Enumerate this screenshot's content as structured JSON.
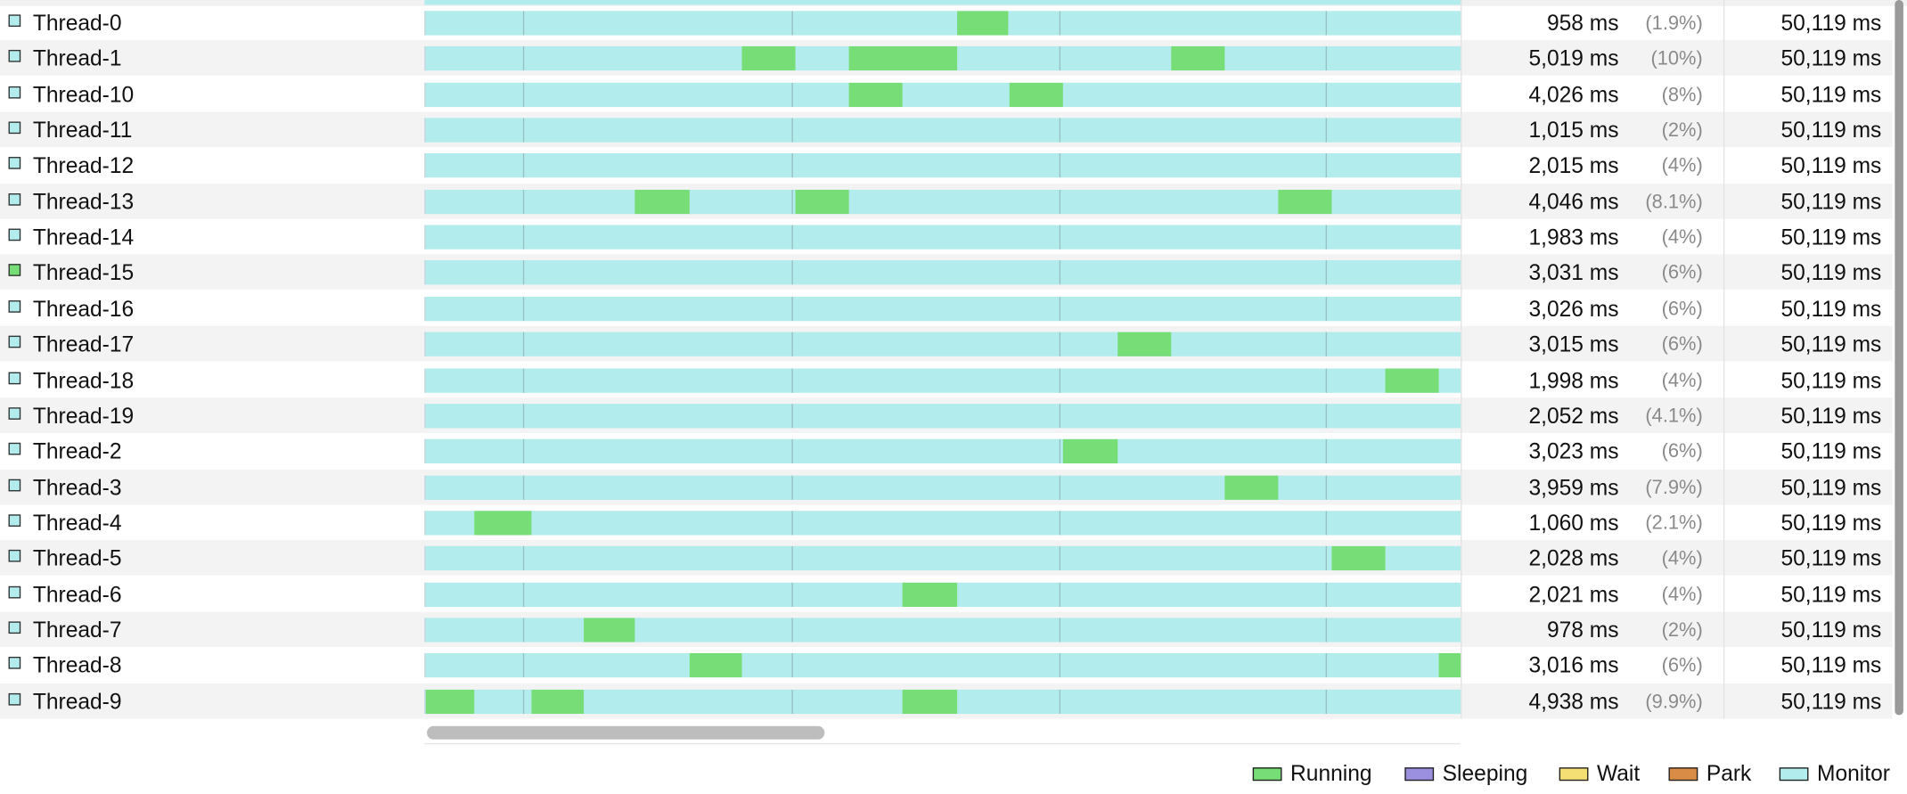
{
  "colors": {
    "running": "#77dd77",
    "sleeping": "#9b8fe0",
    "wait": "#f3df74",
    "park": "#d98c45",
    "monitor": "#b3ecec"
  },
  "threads": [
    {
      "name": "Thread-0",
      "time": "958 ms",
      "pct": "(1.9%)",
      "total": "50,119 ms",
      "state_icon": "monitor",
      "running": [
        [
          437,
          479
        ]
      ]
    },
    {
      "name": "Thread-1",
      "time": "5,019 ms",
      "pct": "(10%)",
      "total": "50,119 ms",
      "state_icon": "monitor",
      "running": [
        [
          260,
          304
        ],
        [
          348,
          437
        ],
        [
          613,
          657
        ]
      ]
    },
    {
      "name": "Thread-10",
      "time": "4,026 ms",
      "pct": "(8%)",
      "total": "50,119 ms",
      "state_icon": "monitor",
      "running": [
        [
          348,
          392
        ],
        [
          480,
          524
        ]
      ]
    },
    {
      "name": "Thread-11",
      "time": "1,015 ms",
      "pct": "(2%)",
      "total": "50,119 ms",
      "state_icon": "monitor",
      "running": []
    },
    {
      "name": "Thread-12",
      "time": "2,015 ms",
      "pct": "(4%)",
      "total": "50,119 ms",
      "state_icon": "monitor",
      "running": []
    },
    {
      "name": "Thread-13",
      "time": "4,046 ms",
      "pct": "(8.1%)",
      "total": "50,119 ms",
      "state_icon": "monitor",
      "running": [
        [
          172,
          217
        ],
        [
          304,
          348
        ],
        [
          701,
          745
        ]
      ]
    },
    {
      "name": "Thread-14",
      "time": "1,983 ms",
      "pct": "(4%)",
      "total": "50,119 ms",
      "state_icon": "monitor",
      "running": []
    },
    {
      "name": "Thread-15",
      "time": "3,031 ms",
      "pct": "(6%)",
      "total": "50,119 ms",
      "state_icon": "running",
      "running": []
    },
    {
      "name": "Thread-16",
      "time": "3,026 ms",
      "pct": "(6%)",
      "total": "50,119 ms",
      "state_icon": "monitor",
      "running": []
    },
    {
      "name": "Thread-17",
      "time": "3,015 ms",
      "pct": "(6%)",
      "total": "50,119 ms",
      "state_icon": "monitor",
      "running": [
        [
          569,
          613
        ]
      ]
    },
    {
      "name": "Thread-18",
      "time": "1,998 ms",
      "pct": "(4%)",
      "total": "50,119 ms",
      "state_icon": "monitor",
      "running": [
        [
          789,
          833
        ]
      ]
    },
    {
      "name": "Thread-19",
      "time": "2,052 ms",
      "pct": "(4.1%)",
      "total": "50,119 ms",
      "state_icon": "monitor",
      "running": []
    },
    {
      "name": "Thread-2",
      "time": "3,023 ms",
      "pct": "(6%)",
      "total": "50,119 ms",
      "state_icon": "monitor",
      "running": [
        [
          524,
          569
        ]
      ]
    },
    {
      "name": "Thread-3",
      "time": "3,959 ms",
      "pct": "(7.9%)",
      "total": "50,119 ms",
      "state_icon": "monitor",
      "running": [
        [
          657,
          701
        ]
      ]
    },
    {
      "name": "Thread-4",
      "time": "1,060 ms",
      "pct": "(2.1%)",
      "total": "50,119 ms",
      "state_icon": "monitor",
      "running": [
        [
          40,
          87
        ]
      ]
    },
    {
      "name": "Thread-5",
      "time": "2,028 ms",
      "pct": "(4%)",
      "total": "50,119 ms",
      "state_icon": "monitor",
      "running": [
        [
          745,
          789
        ]
      ]
    },
    {
      "name": "Thread-6",
      "time": "2,021 ms",
      "pct": "(4%)",
      "total": "50,119 ms",
      "state_icon": "monitor",
      "running": [
        [
          392,
          437
        ]
      ]
    },
    {
      "name": "Thread-7",
      "time": "978 ms",
      "pct": "(2%)",
      "total": "50,119 ms",
      "state_icon": "monitor",
      "running": [
        [
          130,
          172
        ]
      ]
    },
    {
      "name": "Thread-8",
      "time": "3,016 ms",
      "pct": "(6%)",
      "total": "50,119 ms",
      "state_icon": "monitor",
      "running": [
        [
          217,
          260
        ],
        [
          833,
          852
        ]
      ]
    },
    {
      "name": "Thread-9",
      "time": "4,938 ms",
      "pct": "(9.9%)",
      "total": "50,119 ms",
      "state_icon": "monitor",
      "running": [
        [
          0,
          40
        ],
        [
          87,
          130
        ],
        [
          392,
          437
        ]
      ]
    }
  ],
  "legend": [
    {
      "label": "Running",
      "color_key": "running"
    },
    {
      "label": "Sleeping",
      "color_key": "sleeping"
    },
    {
      "label": "Wait",
      "color_key": "wait"
    },
    {
      "label": "Park",
      "color_key": "park"
    },
    {
      "label": "Monitor",
      "color_key": "monitor"
    }
  ]
}
